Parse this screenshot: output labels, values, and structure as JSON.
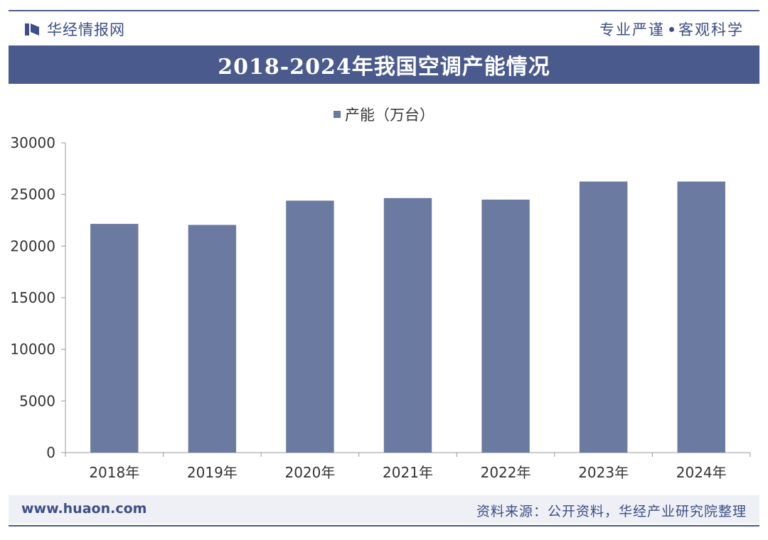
{
  "header": {
    "brand_name": "华经情报网",
    "slogan_left": "专业严谨",
    "slogan_right": "客观科学"
  },
  "chart_data": {
    "type": "bar",
    "title": "2018-2024年我国空调产能情况",
    "xlabel": "",
    "ylabel": "",
    "categories": [
      "2018年",
      "2019年",
      "2020年",
      "2021年",
      "2022年",
      "2023年",
      "2024年"
    ],
    "series": [
      {
        "name": "产能（万台）",
        "values": [
          22150,
          22050,
          24400,
          24650,
          24500,
          26250,
          26250
        ]
      }
    ],
    "ylim": [
      0,
      30000
    ],
    "yticks": [
      0,
      5000,
      10000,
      15000,
      20000,
      25000,
      30000
    ],
    "grid": false,
    "legend_position": "top-center",
    "bar_color": "#6b7aa1"
  },
  "footer": {
    "website": "www.huaon.com",
    "source": "资料来源：公开资料，华经产业研究院整理"
  },
  "colors": {
    "primary": "#4a5a8c",
    "bar": "#6b7aa1",
    "footer_bg": "#eef0f6"
  }
}
